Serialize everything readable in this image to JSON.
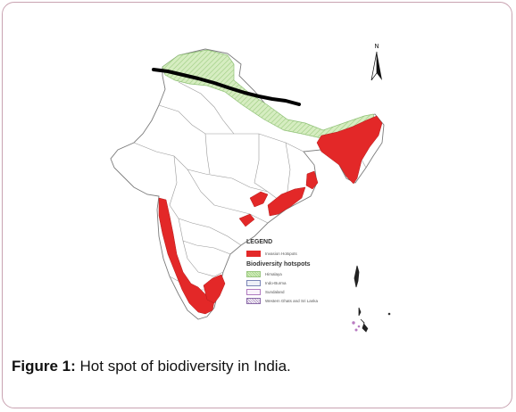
{
  "figure": {
    "caption_label": "Figure 1:",
    "caption_text": " Hot spot of biodiversity in India."
  },
  "compass": {
    "label": "N"
  },
  "legend": {
    "title": "LEGEND",
    "items": [
      {
        "label": "Invasion Hotspots",
        "color": "#e32828"
      }
    ],
    "subtitle": "Biodiversity hotspots",
    "hotspots": [
      {
        "label": "Himalaya",
        "color": "#a7d68c"
      },
      {
        "label": "Indo-Burma",
        "color": "#7a85b6"
      },
      {
        "label": "Sundaland",
        "color": "#b07ac0"
      },
      {
        "label": "Western Ghats and Sri Lanka",
        "color": "#8a6aa8"
      }
    ]
  },
  "colors": {
    "invasion": "#e32828",
    "himalaya_fill": "#cfe9b7",
    "border_frame": "#c9a3b1",
    "state_outline": "#8d8d8d",
    "black_line": "#000000"
  }
}
